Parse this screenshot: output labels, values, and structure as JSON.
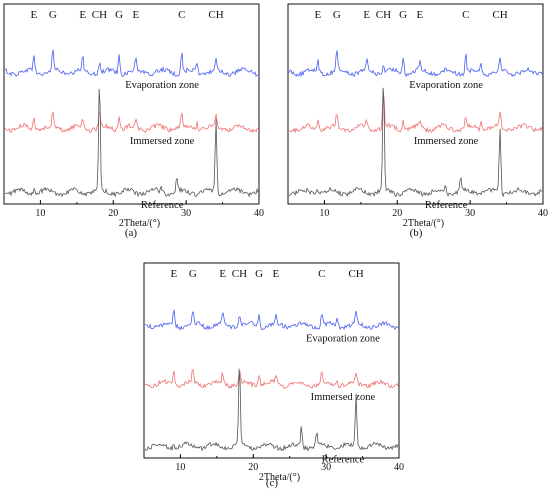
{
  "colors": {
    "evaporation": "#4a5ef0",
    "immersed": "#f07070",
    "reference": "#555555",
    "axis": "#111111"
  },
  "chart_data": [
    {
      "type": "line",
      "caption": "(a)",
      "xlabel": "2Theta/(°)",
      "xlim": [
        5,
        40
      ],
      "xticks": [
        "10",
        "20",
        "30",
        "40"
      ],
      "grid": false,
      "peak_labels": [
        {
          "text": "E",
          "x": 9.1
        },
        {
          "text": "G",
          "x": 11.7
        },
        {
          "text": "E",
          "x": 15.8
        },
        {
          "text": "CH",
          "x": 18.1
        },
        {
          "text": "G",
          "x": 20.8
        },
        {
          "text": "E",
          "x": 23.1
        },
        {
          "text": "C",
          "x": 29.4
        },
        {
          "text": "CH",
          "x": 34.1
        }
      ],
      "series": [
        {
          "name": "Evaporation zone",
          "color_key": "evaporation",
          "baseline": 0.66,
          "peak_scale": 0.9,
          "peaks": [
            [
              9.1,
              0.1
            ],
            [
              11.7,
              0.12
            ],
            [
              15.8,
              0.07
            ],
            [
              18.1,
              0.06
            ],
            [
              20.8,
              0.11
            ],
            [
              23.1,
              0.06
            ],
            [
              29.4,
              0.11
            ],
            [
              31.5,
              0.05
            ],
            [
              34.1,
              0.06
            ]
          ]
        },
        {
          "name": "Immersed zone",
          "color_key": "immersed",
          "baseline": 0.38,
          "peak_scale": 0.9,
          "peaks": [
            [
              9.1,
              0.08
            ],
            [
              11.7,
              0.08
            ],
            [
              15.8,
              0.05
            ],
            [
              18.1,
              0.09
            ],
            [
              20.8,
              0.07
            ],
            [
              23.1,
              0.05
            ],
            [
              29.4,
              0.07
            ],
            [
              31.5,
              0.04
            ],
            [
              34.1,
              0.08
            ]
          ]
        },
        {
          "name": "Reference",
          "color_key": "reference",
          "baseline": 0.06,
          "peak_scale": 1.0,
          "peaks": [
            [
              9.1,
              0.02
            ],
            [
              18.1,
              0.56
            ],
            [
              26.6,
              0.03
            ],
            [
              28.7,
              0.06
            ],
            [
              34.1,
              0.37
            ]
          ]
        }
      ]
    },
    {
      "type": "line",
      "caption": "(b)",
      "xlabel": "2Theta/(°)",
      "xlim": [
        5,
        40
      ],
      "xticks": [
        "10",
        "20",
        "30",
        "40"
      ],
      "grid": false,
      "peak_labels": [
        {
          "text": "E",
          "x": 9.1
        },
        {
          "text": "G",
          "x": 11.7
        },
        {
          "text": "E",
          "x": 15.8
        },
        {
          "text": "CH",
          "x": 18.1
        },
        {
          "text": "G",
          "x": 20.8
        },
        {
          "text": "E",
          "x": 23.1
        },
        {
          "text": "C",
          "x": 29.4
        },
        {
          "text": "CH",
          "x": 34.1
        }
      ],
      "series": [
        {
          "name": "Evaporation zone",
          "color_key": "evaporation",
          "baseline": 0.66,
          "peak_scale": 0.9,
          "peaks": [
            [
              9.1,
              0.07
            ],
            [
              11.7,
              0.12
            ],
            [
              15.8,
              0.06
            ],
            [
              18.1,
              0.05
            ],
            [
              20.8,
              0.1
            ],
            [
              23.1,
              0.05
            ],
            [
              29.4,
              0.1
            ],
            [
              31.5,
              0.05
            ],
            [
              34.1,
              0.06
            ]
          ]
        },
        {
          "name": "Immersed zone",
          "color_key": "immersed",
          "baseline": 0.38,
          "peak_scale": 0.9,
          "peaks": [
            [
              9.1,
              0.06
            ],
            [
              11.7,
              0.07
            ],
            [
              15.8,
              0.04
            ],
            [
              18.1,
              0.22
            ],
            [
              20.8,
              0.06
            ],
            [
              23.1,
              0.04
            ],
            [
              29.4,
              0.06
            ],
            [
              31.5,
              0.04
            ],
            [
              34.1,
              0.09
            ]
          ]
        },
        {
          "name": "Reference",
          "color_key": "reference",
          "baseline": 0.06,
          "peak_scale": 1.0,
          "peaks": [
            [
              9.1,
              0.02
            ],
            [
              18.1,
              0.56
            ],
            [
              26.6,
              0.03
            ],
            [
              28.7,
              0.06
            ],
            [
              34.1,
              0.32
            ]
          ]
        }
      ]
    },
    {
      "type": "line",
      "caption": "(c)",
      "xlabel": "2Theta/(°)",
      "xlim": [
        5,
        40
      ],
      "xticks": [
        "10",
        "20",
        "30",
        "40"
      ],
      "grid": false,
      "peak_labels": [
        {
          "text": "E",
          "x": 9.1
        },
        {
          "text": "G",
          "x": 11.7
        },
        {
          "text": "E",
          "x": 15.8
        },
        {
          "text": "CH",
          "x": 18.1
        },
        {
          "text": "G",
          "x": 20.8
        },
        {
          "text": "E",
          "x": 23.1
        },
        {
          "text": "C",
          "x": 29.4
        },
        {
          "text": "CH",
          "x": 34.1
        }
      ],
      "series": [
        {
          "name": "Evaporation zone",
          "color_key": "evaporation",
          "baseline": 0.68,
          "peak_scale": 0.9,
          "peaks": [
            [
              9.1,
              0.08
            ],
            [
              11.7,
              0.08
            ],
            [
              15.8,
              0.06
            ],
            [
              18.1,
              0.06
            ],
            [
              20.8,
              0.07
            ],
            [
              23.1,
              0.05
            ],
            [
              29.4,
              0.08
            ],
            [
              31.5,
              0.04
            ],
            [
              34.1,
              0.06
            ]
          ]
        },
        {
          "name": "Immersed zone",
          "color_key": "immersed",
          "baseline": 0.38,
          "peak_scale": 0.9,
          "peaks": [
            [
              9.1,
              0.08
            ],
            [
              11.7,
              0.08
            ],
            [
              15.8,
              0.06
            ],
            [
              18.1,
              0.07
            ],
            [
              20.8,
              0.07
            ],
            [
              23.1,
              0.05
            ],
            [
              29.4,
              0.07
            ],
            [
              31.5,
              0.04
            ],
            [
              34.1,
              0.06
            ]
          ]
        },
        {
          "name": "Reference",
          "color_key": "reference",
          "baseline": 0.06,
          "peak_scale": 1.0,
          "peaks": [
            [
              9.1,
              0.02
            ],
            [
              18.1,
              0.42
            ],
            [
              26.6,
              0.1
            ],
            [
              28.7,
              0.08
            ],
            [
              34.1,
              0.27
            ]
          ]
        }
      ]
    }
  ]
}
